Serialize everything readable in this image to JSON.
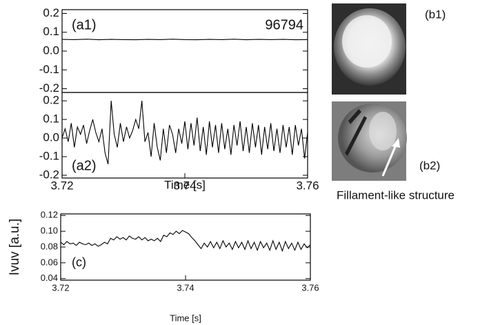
{
  "chart_data": [
    {
      "type": "line",
      "labels": [
        "(a1)",
        "96794"
      ],
      "x": [
        3.72,
        3.722,
        3.724,
        3.726,
        3.728,
        3.73,
        3.732,
        3.734,
        3.736,
        3.738,
        3.74,
        3.742,
        3.744,
        3.746,
        3.748,
        3.75,
        3.752,
        3.754,
        3.756,
        3.758,
        3.76
      ],
      "values": [
        0.062,
        0.061,
        0.063,
        0.06,
        0.062,
        0.061,
        0.06,
        0.062,
        0.061,
        0.063,
        0.061,
        0.06,
        0.062,
        0.061,
        0.063,
        0.06,
        0.062,
        0.061,
        0.062,
        0.06,
        0.061
      ],
      "color": "#000000",
      "xlim": [
        3.72,
        3.76
      ],
      "ylim": [
        -0.22,
        0.22
      ],
      "yticks": [
        0.2,
        0.1,
        {
          "value": 0,
          "label": "0.0"
        },
        -0.1,
        -0.2
      ]
    },
    {
      "type": "line",
      "labels": [
        "(a2)"
      ],
      "xlabel": "Time [s]",
      "x": [
        3.72,
        3.7205,
        3.721,
        3.7215,
        3.722,
        3.7225,
        3.723,
        3.7235,
        3.724,
        3.7245,
        3.725,
        3.7255,
        3.726,
        3.7265,
        3.727,
        3.7275,
        3.728,
        3.7285,
        3.729,
        3.7295,
        3.73,
        3.7305,
        3.731,
        3.7315,
        3.732,
        3.7325,
        3.733,
        3.7335,
        3.734,
        3.7345,
        3.735,
        3.7355,
        3.736,
        3.7365,
        3.737,
        3.7375,
        3.738,
        3.7385,
        3.739,
        3.7395,
        3.74,
        3.7405,
        3.741,
        3.7415,
        3.742,
        3.7425,
        3.743,
        3.7435,
        3.744,
        3.7445,
        3.745,
        3.7455,
        3.746,
        3.7465,
        3.747,
        3.7475,
        3.748,
        3.7485,
        3.749,
        3.7495,
        3.75,
        3.7505,
        3.751,
        3.7515,
        3.752,
        3.7525,
        3.753,
        3.7535,
        3.754,
        3.7545,
        3.755,
        3.7555,
        3.756,
        3.7565,
        3.757,
        3.7575,
        3.758,
        3.7585,
        3.759,
        3.7595,
        3.76
      ],
      "values": [
        0.0,
        0.05,
        -0.02,
        0.08,
        -0.05,
        0.06,
        0.02,
        0.07,
        -0.03,
        0.04,
        0.1,
        0.03,
        -0.02,
        0.05,
        -0.08,
        -0.14,
        0.2,
        0.02,
        -0.05,
        0.08,
        -0.02,
        0.06,
        0.0,
        0.04,
        0.1,
        0.05,
        0.2,
        -0.02,
        0.03,
        -0.1,
        0.08,
        -0.05,
        -0.12,
        0.05,
        -0.08,
        0.07,
        0.02,
        -0.08,
        0.05,
        -0.03,
        0.09,
        -0.06,
        0.08,
        -0.04,
        0.11,
        -0.07,
        0.06,
        -0.09,
        0.09,
        -0.05,
        0.07,
        -0.08,
        0.08,
        -0.06,
        0.05,
        -0.09,
        0.07,
        -0.04,
        0.09,
        -0.07,
        0.06,
        -0.08,
        0.08,
        -0.05,
        0.07,
        -0.09,
        0.06,
        -0.06,
        0.08,
        -0.07,
        0.05,
        -0.08,
        0.07,
        -0.05,
        0.06,
        -0.09,
        0.07,
        -0.04,
        0.05,
        -0.11,
        0.03
      ],
      "color": "#000000",
      "xlim": [
        3.72,
        3.76
      ],
      "ylim": [
        -0.215,
        0.245
      ],
      "xticks": [
        3.72,
        3.74,
        3.76
      ],
      "yticks": [
        0.2,
        0.1,
        {
          "value": 0,
          "label": "0.0"
        },
        -0.1,
        -0.2
      ]
    },
    {
      "type": "line",
      "labels": [
        "(c)"
      ],
      "xlabel": "Time [s]",
      "ylabel": "Ivuv [a.u.]",
      "x": [
        3.72,
        3.7205,
        3.721,
        3.7215,
        3.722,
        3.7225,
        3.723,
        3.7235,
        3.724,
        3.7245,
        3.725,
        3.7255,
        3.726,
        3.7265,
        3.727,
        3.7275,
        3.728,
        3.7285,
        3.729,
        3.7295,
        3.73,
        3.7305,
        3.731,
        3.7315,
        3.732,
        3.7325,
        3.733,
        3.7335,
        3.734,
        3.7345,
        3.735,
        3.7355,
        3.736,
        3.7365,
        3.737,
        3.7375,
        3.738,
        3.7385,
        3.739,
        3.7395,
        3.74,
        3.7405,
        3.741,
        3.7415,
        3.742,
        3.7425,
        3.743,
        3.7435,
        3.744,
        3.7445,
        3.745,
        3.7455,
        3.746,
        3.7465,
        3.747,
        3.7475,
        3.748,
        3.7485,
        3.749,
        3.7495,
        3.75,
        3.7505,
        3.751,
        3.7515,
        3.752,
        3.7525,
        3.753,
        3.7535,
        3.754,
        3.7545,
        3.755,
        3.7555,
        3.756,
        3.7565,
        3.757,
        3.7575,
        3.758,
        3.7585,
        3.759,
        3.7595,
        3.76
      ],
      "values": [
        0.086,
        0.083,
        0.087,
        0.084,
        0.085,
        0.082,
        0.086,
        0.084,
        0.083,
        0.085,
        0.082,
        0.084,
        0.081,
        0.083,
        0.086,
        0.084,
        0.091,
        0.089,
        0.093,
        0.09,
        0.092,
        0.089,
        0.094,
        0.091,
        0.09,
        0.093,
        0.089,
        0.092,
        0.088,
        0.09,
        0.088,
        0.091,
        0.087,
        0.095,
        0.093,
        0.098,
        0.096,
        0.1,
        0.097,
        0.101,
        0.099,
        0.097,
        0.092,
        0.088,
        0.083,
        0.078,
        0.085,
        0.08,
        0.087,
        0.079,
        0.086,
        0.078,
        0.088,
        0.08,
        0.085,
        0.077,
        0.087,
        0.079,
        0.086,
        0.077,
        0.088,
        0.078,
        0.086,
        0.076,
        0.087,
        0.079,
        0.085,
        0.076,
        0.088,
        0.077,
        0.086,
        0.075,
        0.087,
        0.078,
        0.085,
        0.076,
        0.086,
        0.077,
        0.084,
        0.079,
        0.083
      ],
      "color": "#000000",
      "xlim": [
        3.72,
        3.76
      ],
      "ylim": [
        0.038,
        0.122
      ],
      "xticks": [
        3.72,
        3.74,
        3.76
      ],
      "yticks": [
        0.12,
        {
          "value": 0.1,
          "label": "0.10"
        },
        0.08,
        0.06,
        0.04
      ]
    }
  ],
  "images": {
    "b1_label": "(b1)",
    "b2_label": "(b2)",
    "caption": "Fillament-like structure"
  }
}
